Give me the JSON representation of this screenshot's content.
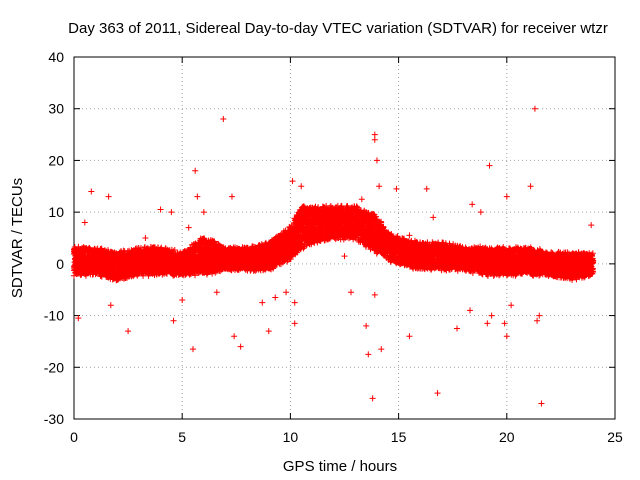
{
  "chart_data": {
    "type": "scatter",
    "title": "Day 363 of 2011, Sidereal Day-to-day VTEC variation (SDTVAR) for receiver wtzr",
    "xlabel": "GPS time / hours",
    "ylabel": "SDTVAR / TECUs",
    "xlim": [
      0,
      25
    ],
    "ylim": [
      -30,
      40
    ],
    "xticks": [
      0,
      5,
      10,
      15,
      20,
      25
    ],
    "yticks": [
      -30,
      -20,
      -10,
      0,
      10,
      20,
      30,
      40
    ],
    "xtick_labels": [
      "0",
      "5",
      "10",
      "15",
      "20",
      "25"
    ],
    "ytick_labels": [
      "-30",
      "-20",
      "-10",
      "0",
      "10",
      "20",
      "30",
      "40"
    ],
    "grid": true,
    "marker": "+",
    "color": "#ff0000",
    "series": [
      {
        "name": "SDTVAR",
        "band": [
          {
            "x": 0.0,
            "low": -2,
            "high": 3
          },
          {
            "x": 1.0,
            "low": -2,
            "high": 3
          },
          {
            "x": 2.0,
            "low": -3,
            "high": 2
          },
          {
            "x": 3.0,
            "low": -2,
            "high": 3
          },
          {
            "x": 4.0,
            "low": -2,
            "high": 3
          },
          {
            "x": 5.0,
            "low": -2,
            "high": 2
          },
          {
            "x": 6.0,
            "low": -2,
            "high": 5
          },
          {
            "x": 7.0,
            "low": -1,
            "high": 3
          },
          {
            "x": 8.0,
            "low": -1,
            "high": 3
          },
          {
            "x": 9.0,
            "low": -1,
            "high": 4
          },
          {
            "x": 10.0,
            "low": 1,
            "high": 7
          },
          {
            "x": 10.5,
            "low": 3,
            "high": 11
          },
          {
            "x": 11.0,
            "low": 4,
            "high": 11
          },
          {
            "x": 12.0,
            "low": 5,
            "high": 11
          },
          {
            "x": 13.0,
            "low": 5,
            "high": 11
          },
          {
            "x": 14.0,
            "low": 2,
            "high": 9
          },
          {
            "x": 14.5,
            "low": 1,
            "high": 6
          },
          {
            "x": 15.0,
            "low": 0,
            "high": 5
          },
          {
            "x": 16.0,
            "low": -1,
            "high": 4
          },
          {
            "x": 17.0,
            "low": -1,
            "high": 4
          },
          {
            "x": 18.0,
            "low": -1,
            "high": 3
          },
          {
            "x": 19.0,
            "low": -2,
            "high": 3
          },
          {
            "x": 20.0,
            "low": -2,
            "high": 3
          },
          {
            "x": 21.0,
            "low": -2,
            "high": 3
          },
          {
            "x": 22.0,
            "low": -2,
            "high": 2
          },
          {
            "x": 23.0,
            "low": -3,
            "high": 2
          },
          {
            "x": 24.0,
            "low": -2,
            "high": 2
          }
        ],
        "outliers": [
          {
            "x": 0.2,
            "y": -10.5
          },
          {
            "x": 0.5,
            "y": 8
          },
          {
            "x": 0.8,
            "y": 14
          },
          {
            "x": 1.6,
            "y": 13
          },
          {
            "x": 1.7,
            "y": -8
          },
          {
            "x": 2.5,
            "y": -13
          },
          {
            "x": 3.3,
            "y": 5
          },
          {
            "x": 4.0,
            "y": 10.5
          },
          {
            "x": 4.5,
            "y": 10
          },
          {
            "x": 4.6,
            "y": -11
          },
          {
            "x": 5.0,
            "y": -7
          },
          {
            "x": 5.3,
            "y": 7
          },
          {
            "x": 5.5,
            "y": -16.5
          },
          {
            "x": 5.6,
            "y": 18
          },
          {
            "x": 5.7,
            "y": 13
          },
          {
            "x": 6.0,
            "y": 10
          },
          {
            "x": 6.6,
            "y": -5.5
          },
          {
            "x": 6.9,
            "y": 28
          },
          {
            "x": 7.3,
            "y": 13
          },
          {
            "x": 7.4,
            "y": -14
          },
          {
            "x": 7.7,
            "y": -16
          },
          {
            "x": 8.7,
            "y": -7.5
          },
          {
            "x": 9.0,
            "y": -13
          },
          {
            "x": 9.3,
            "y": -6.5
          },
          {
            "x": 9.8,
            "y": -5.5
          },
          {
            "x": 10.1,
            "y": 16
          },
          {
            "x": 10.2,
            "y": -11.5
          },
          {
            "x": 10.5,
            "y": 15
          },
          {
            "x": 10.2,
            "y": -7.5
          },
          {
            "x": 12.5,
            "y": 1.5
          },
          {
            "x": 12.8,
            "y": -5.5
          },
          {
            "x": 13.3,
            "y": 12.5
          },
          {
            "x": 13.5,
            "y": -12
          },
          {
            "x": 13.6,
            "y": -17.5
          },
          {
            "x": 13.8,
            "y": -26
          },
          {
            "x": 13.9,
            "y": 25
          },
          {
            "x": 13.9,
            "y": 24
          },
          {
            "x": 14.0,
            "y": 20
          },
          {
            "x": 13.9,
            "y": -6
          },
          {
            "x": 14.1,
            "y": 15
          },
          {
            "x": 14.2,
            "y": -16.5
          },
          {
            "x": 14.9,
            "y": 14.5
          },
          {
            "x": 15.5,
            "y": -14
          },
          {
            "x": 15.5,
            "y": 5.5
          },
          {
            "x": 16.3,
            "y": 14.5
          },
          {
            "x": 16.6,
            "y": 9
          },
          {
            "x": 16.8,
            "y": -25
          },
          {
            "x": 17.7,
            "y": -12.5
          },
          {
            "x": 18.3,
            "y": -9
          },
          {
            "x": 18.4,
            "y": 11.5
          },
          {
            "x": 18.8,
            "y": 10
          },
          {
            "x": 19.2,
            "y": 19
          },
          {
            "x": 19.1,
            "y": -11.5
          },
          {
            "x": 19.3,
            "y": -10
          },
          {
            "x": 19.9,
            "y": -11.5
          },
          {
            "x": 20.0,
            "y": 13
          },
          {
            "x": 20.2,
            "y": -8
          },
          {
            "x": 20.0,
            "y": -14
          },
          {
            "x": 21.1,
            "y": 15
          },
          {
            "x": 21.3,
            "y": 30
          },
          {
            "x": 21.4,
            "y": -11
          },
          {
            "x": 21.6,
            "y": -27
          },
          {
            "x": 21.5,
            "y": -10
          },
          {
            "x": 23.9,
            "y": 7.5
          }
        ]
      }
    ]
  }
}
